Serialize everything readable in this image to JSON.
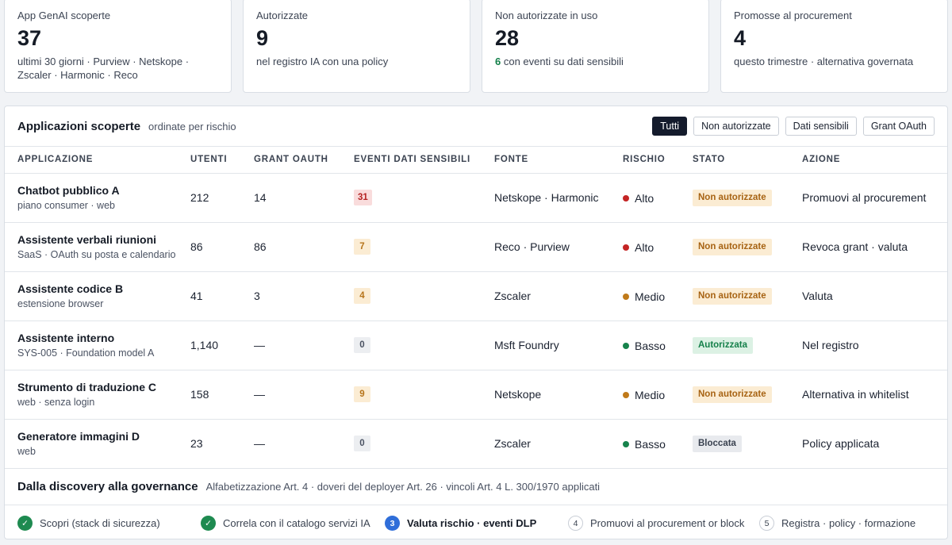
{
  "kpis": [
    {
      "label": "App GenAI scoperte",
      "value": "37",
      "sub": "ultimi 30 giorni · Purview · Netskope · Zscaler · Harmonic · Reco"
    },
    {
      "label": "Autorizzate",
      "value": "9",
      "sub": "nel registro IA con una policy"
    },
    {
      "label": "Non autorizzate in uso",
      "value": "28",
      "sub_highlight": "6",
      "sub": " con eventi su dati sensibili"
    },
    {
      "label": "Promosse al procurement",
      "value": "4",
      "sub": "questo trimestre · alternativa governata"
    }
  ],
  "panel": {
    "title": "Applicazioni scoperte",
    "subtitle": "ordinate per rischio",
    "filters": [
      "Tutti",
      "Non autorizzate",
      "Dati sensibili",
      "Grant OAuth"
    ],
    "active_filter": "Tutti"
  },
  "table": {
    "columns": [
      "Applicazione",
      "Utenti",
      "Grant OAuth",
      "Eventi dati sensibili",
      "Fonte",
      "Rischio",
      "Stato",
      "Azione"
    ],
    "rows": [
      {
        "name": "Chatbot pubblico A",
        "desc": "piano consumer · web",
        "users": "212",
        "oauth": "14",
        "events": "31",
        "events_level": "red",
        "source": "Netskope · Harmonic",
        "risk": "Alto",
        "risk_color": "#c42525",
        "status": "Non autorizzate",
        "status_level": "amber",
        "action": "Promuovi al procurement"
      },
      {
        "name": "Assistente verbali riunioni",
        "desc": "SaaS · OAuth su posta e calendario",
        "users": "86",
        "oauth": "86",
        "events": "7",
        "events_level": "amber",
        "source": "Reco · Purview",
        "risk": "Alto",
        "risk_color": "#c42525",
        "status": "Non autorizzate",
        "status_level": "amber",
        "action": "Revoca grant · valuta"
      },
      {
        "name": "Assistente codice B",
        "desc": "estensione browser",
        "users": "41",
        "oauth": "3",
        "events": "4",
        "events_level": "amber",
        "source": "Zscaler",
        "risk": "Medio",
        "risk_color": "#c07a1a",
        "status": "Non autorizzate",
        "status_level": "amber",
        "action": "Valuta"
      },
      {
        "name": "Assistente interno",
        "desc": "SYS-005 · Foundation model A",
        "users": "1,140",
        "oauth": "—",
        "events": "0",
        "events_level": "gray",
        "source": "Msft Foundry",
        "risk": "Basso",
        "risk_color": "#17834c",
        "status": "Autorizzata",
        "status_level": "green",
        "action": "Nel registro"
      },
      {
        "name": "Strumento di traduzione C",
        "desc": "web · senza login",
        "users": "158",
        "oauth": "—",
        "events": "9",
        "events_level": "amber",
        "source": "Netskope",
        "risk": "Medio",
        "risk_color": "#c07a1a",
        "status": "Non autorizzate",
        "status_level": "amber",
        "action": "Alternativa in whitelist"
      },
      {
        "name": "Generatore immagini D",
        "desc": "web",
        "users": "23",
        "oauth": "—",
        "events": "0",
        "events_level": "gray",
        "source": "Zscaler",
        "risk": "Basso",
        "risk_color": "#17834c",
        "status": "Bloccata",
        "status_level": "gray",
        "action": "Policy applicata"
      }
    ]
  },
  "governance": {
    "title": "Dalla discovery alla governance",
    "subtitle": "Alfabetizzazione Art. 4 · doveri del deployer Art. 26 · vincoli Art. 4 L. 300/1970 applicati",
    "steps": [
      {
        "marker": "✓",
        "label": "Scopri (stack di sicurezza)",
        "state": "done"
      },
      {
        "marker": "✓",
        "label": "Correla con il catalogo servizi IA",
        "state": "done"
      },
      {
        "marker": "3",
        "label": "Valuta rischio · eventi DLP",
        "state": "active"
      },
      {
        "marker": "4",
        "label": "Promuovi al procurement or block",
        "state": "todo"
      },
      {
        "marker": "5",
        "label": "Registra · policy · formazione",
        "state": "todo"
      }
    ]
  }
}
